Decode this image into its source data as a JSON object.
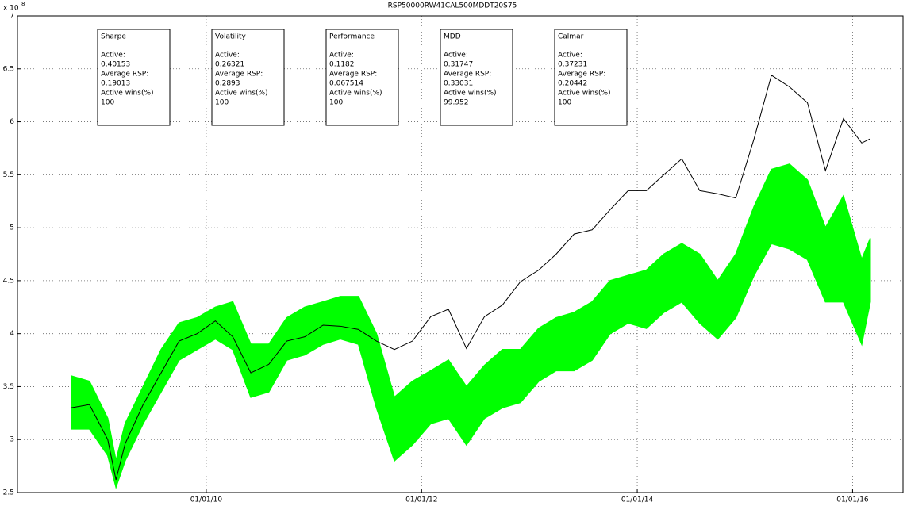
{
  "chart_data": {
    "type": "line",
    "title": "RSP50000RW41CAL500MDDT20S75",
    "y_multiplier": "x 10",
    "y_exponent": "8",
    "x": [
      "2008-10-01",
      "2008-12-01",
      "2009-02-01",
      "2009-03-01",
      "2009-04-01",
      "2009-06-01",
      "2009-08-01",
      "2009-10-01",
      "2009-12-01",
      "2010-02-01",
      "2010-04-01",
      "2010-06-01",
      "2010-08-01",
      "2010-10-01",
      "2010-12-01",
      "2011-02-01",
      "2011-04-01",
      "2011-06-01",
      "2011-08-01",
      "2011-10-01",
      "2011-12-01",
      "2012-02-01",
      "2012-04-01",
      "2012-06-01",
      "2012-08-01",
      "2012-10-01",
      "2012-12-01",
      "2013-02-01",
      "2013-04-01",
      "2013-06-01",
      "2013-08-01",
      "2013-10-01",
      "2013-12-01",
      "2014-02-01",
      "2014-04-01",
      "2014-06-01",
      "2014-08-01",
      "2014-10-01",
      "2014-12-01",
      "2015-02-01",
      "2015-04-01",
      "2015-06-01",
      "2015-08-01",
      "2015-10-01",
      "2015-12-01",
      "2016-02-01",
      "2016-03-01"
    ],
    "series": [
      {
        "color": "#00ff00",
        "low": [
          3.1,
          3.1,
          2.85,
          2.55,
          2.8,
          3.15,
          3.45,
          3.75,
          3.85,
          3.95,
          3.85,
          3.4,
          3.45,
          3.75,
          3.8,
          3.9,
          3.95,
          3.9,
          3.3,
          2.8,
          2.95,
          3.15,
          3.2,
          2.95,
          3.2,
          3.3,
          3.35,
          3.55,
          3.65,
          3.65,
          3.75,
          4.0,
          4.1,
          4.05,
          4.2,
          4.3,
          4.1,
          3.95,
          4.15,
          4.55,
          4.85,
          4.8,
          4.7,
          4.3,
          4.3,
          3.9,
          4.3
        ],
        "high": [
          3.6,
          3.55,
          3.2,
          2.8,
          3.15,
          3.5,
          3.85,
          4.1,
          4.15,
          4.25,
          4.3,
          3.9,
          3.9,
          4.15,
          4.25,
          4.3,
          4.35,
          4.35,
          4.0,
          3.4,
          3.55,
          3.65,
          3.75,
          3.5,
          3.7,
          3.85,
          3.85,
          4.05,
          4.15,
          4.2,
          4.3,
          4.5,
          4.55,
          4.6,
          4.75,
          4.85,
          4.75,
          4.5,
          4.75,
          5.2,
          5.55,
          5.6,
          5.45,
          5.0,
          5.3,
          4.7,
          4.9
        ]
      },
      {
        "color": "#000000",
        "values": [
          3.3,
          3.33,
          3.0,
          2.62,
          2.96,
          3.33,
          3.63,
          3.93,
          4.0,
          4.12,
          3.97,
          3.63,
          3.71,
          3.93,
          3.97,
          4.08,
          4.07,
          4.04,
          3.93,
          3.85,
          3.93,
          4.16,
          4.23,
          3.86,
          4.16,
          4.27,
          4.49,
          4.6,
          4.75,
          4.94,
          4.98,
          5.17,
          5.35,
          5.35,
          5.5,
          5.65,
          5.35,
          5.32,
          5.28,
          5.84,
          6.44,
          6.33,
          6.18,
          5.54,
          6.03,
          5.8,
          5.84
        ]
      }
    ],
    "xlim": [
      "2008-04-01",
      "2016-06-20"
    ],
    "xticks": [
      {
        "value": "2010-01-01",
        "label": "01/01/10"
      },
      {
        "value": "2012-01-01",
        "label": "01/01/12"
      },
      {
        "value": "2014-01-01",
        "label": "01/01/14"
      },
      {
        "value": "2016-01-01",
        "label": "01/01/16"
      }
    ],
    "ylim": [
      2.5,
      7
    ],
    "yticks": [
      2.5,
      3,
      3.5,
      4,
      4.5,
      5,
      5.5,
      6,
      6.5,
      7
    ],
    "grid": true,
    "annotations": [
      {
        "title": "Sharpe",
        "lines": [
          "Active:",
          "0.40153",
          "Average RSP:",
          "0.19013",
          "Active wins(%)",
          "100"
        ]
      },
      {
        "title": "Volatility",
        "lines": [
          "Active:",
          "0.26321",
          "Average RSP:",
          "0.2893",
          "Active wins(%)",
          "100"
        ]
      },
      {
        "title": "Performance",
        "lines": [
          "Active:",
          "0.1182",
          "Average RSP:",
          "0.067514",
          "Active wins(%)",
          "100"
        ]
      },
      {
        "title": "MDD",
        "lines": [
          "Active:",
          "0.31747",
          "Average RSP:",
          "0.33031",
          "Active wins(%)",
          "99.952"
        ]
      },
      {
        "title": "Calmar",
        "lines": [
          "Active:",
          "0.37231",
          "Average RSP:",
          "0.20442",
          "Active wins(%)",
          "100"
        ]
      }
    ]
  }
}
